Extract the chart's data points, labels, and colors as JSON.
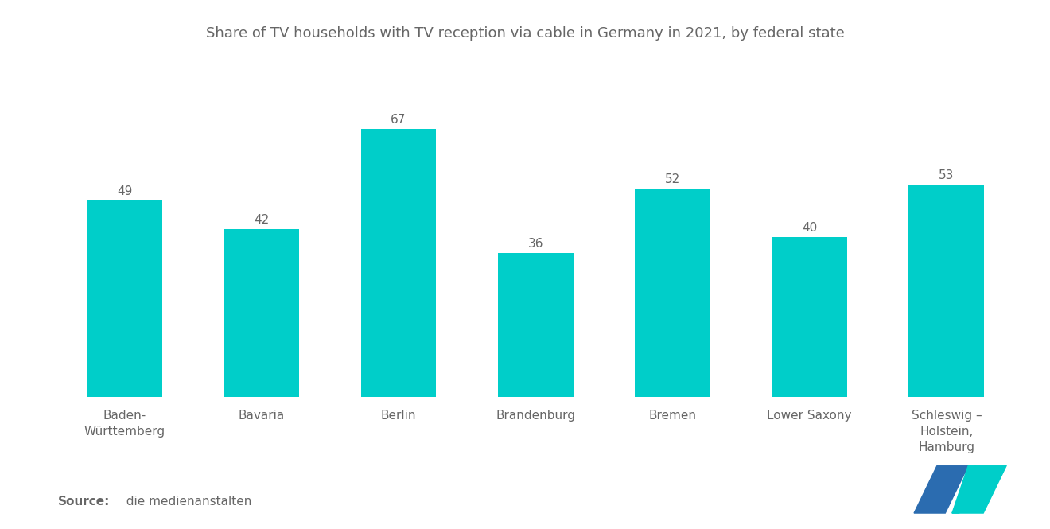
{
  "title": "Share of TV households with TV reception via cable in Germany in 2021, by federal state",
  "categories": [
    "Baden-\nWürttemberg",
    "Bavaria",
    "Berlin",
    "Brandenburg",
    "Bremen",
    "Lower Saxony",
    "Schleswig –\nHolstein,\nHamburg"
  ],
  "values": [
    49,
    42,
    67,
    36,
    52,
    40,
    53
  ],
  "bar_color": "#00CEC9",
  "background_color": "#ffffff",
  "title_fontsize": 13.0,
  "label_fontsize": 11,
  "value_fontsize": 11,
  "source_bold": "Source:",
  "source_text": "  die medienanstalten",
  "source_fontsize": 11,
  "text_color": "#666666",
  "ylim": [
    0,
    82
  ],
  "bar_width": 0.55,
  "logo_color_navy": "#2B6CB0",
  "logo_color_teal": "#00CEC9"
}
